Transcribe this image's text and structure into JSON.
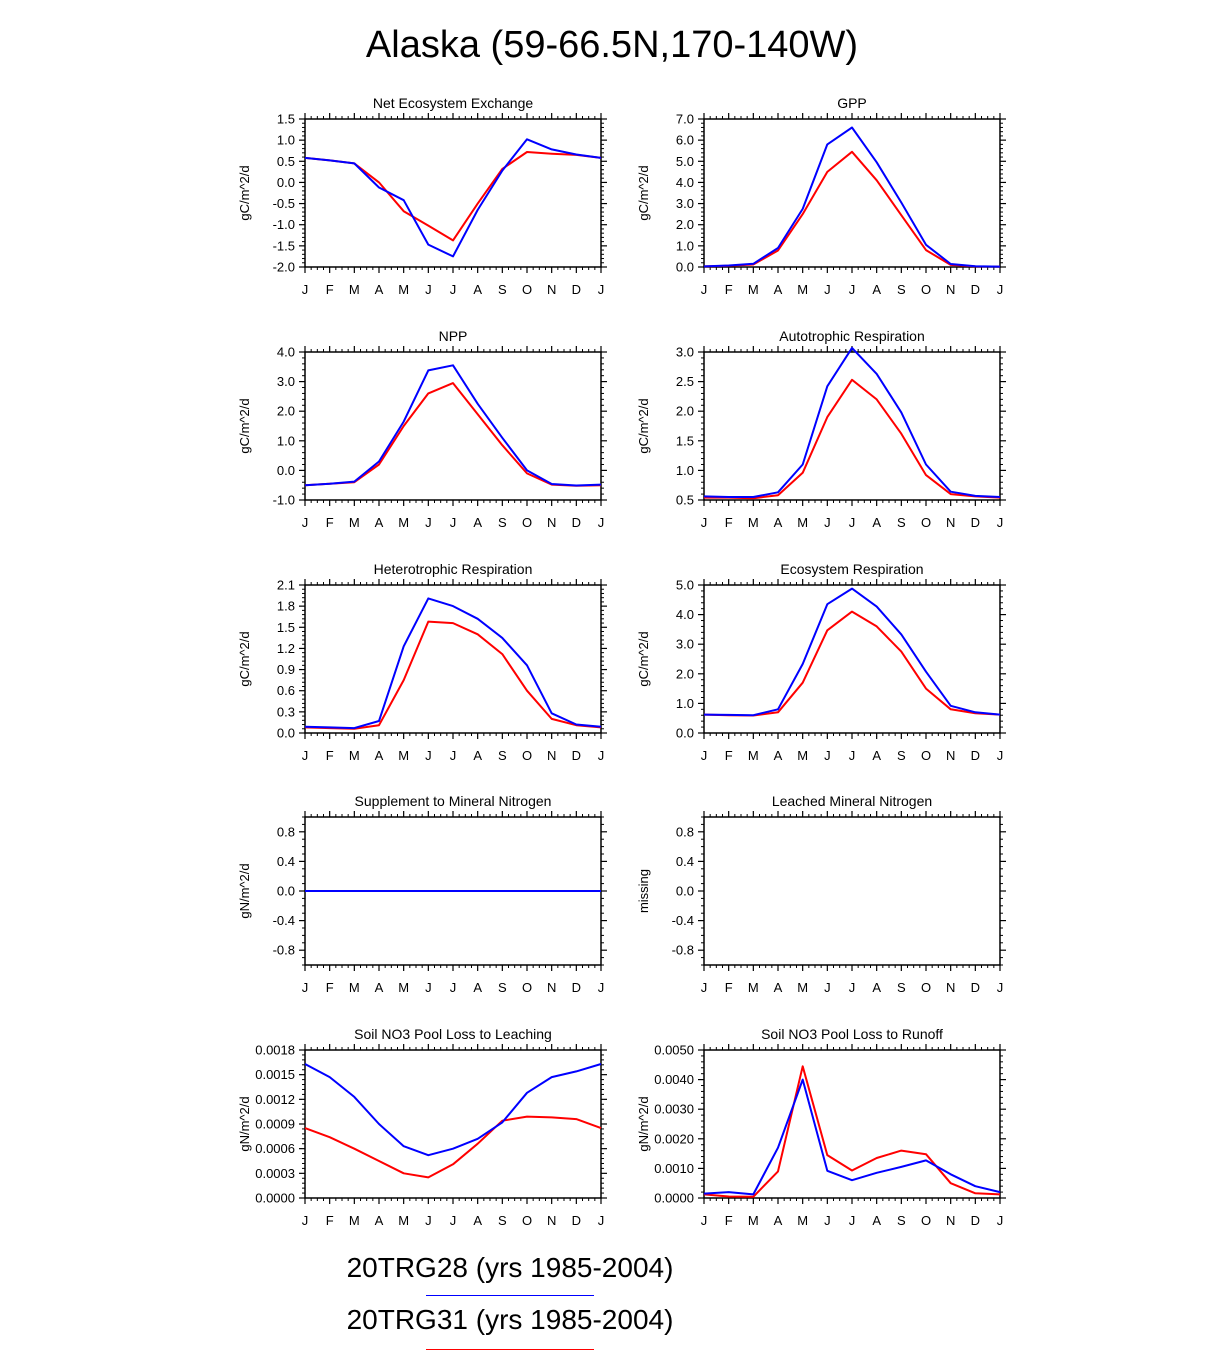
{
  "title": "Alaska (59-66.5N,170-140W)",
  "legend": [
    {
      "label": "20TRG28 (yrs 1985-2004)",
      "color": "#0000ff"
    },
    {
      "label": "20TRG31 (yrs 1985-2004)",
      "color": "#ff0000"
    }
  ],
  "chart_data": [
    {
      "type": "line",
      "title": "Net Ecosystem Exchange",
      "ylabel": "gC/m^2/d",
      "categories": [
        "J",
        "F",
        "M",
        "A",
        "M",
        "J",
        "J",
        "A",
        "S",
        "O",
        "N",
        "D",
        "J"
      ],
      "ylim": [
        -2.0,
        1.5
      ],
      "yticks": [
        "-2.0",
        "-1.5",
        "-1.0",
        "-0.5",
        "0.0",
        "0.5",
        "1.0",
        "1.5"
      ],
      "series": [
        {
          "name": "20TRG31 (yrs 1985-2004)",
          "color": "#ff0000",
          "values": [
            0.58,
            0.52,
            0.45,
            0.0,
            -0.68,
            -1.02,
            -1.37,
            -0.5,
            0.32,
            0.72,
            0.68,
            0.65,
            0.58
          ]
        },
        {
          "name": "20TRG28 (yrs 1985-2004)",
          "color": "#0000ff",
          "values": [
            0.58,
            0.52,
            0.45,
            -0.12,
            -0.42,
            -1.47,
            -1.75,
            -0.65,
            0.28,
            1.02,
            0.78,
            0.66,
            0.58
          ]
        }
      ]
    },
    {
      "type": "line",
      "title": "GPP",
      "ylabel": "gC/m^2/d",
      "categories": [
        "J",
        "F",
        "M",
        "A",
        "M",
        "J",
        "J",
        "A",
        "S",
        "O",
        "N",
        "D",
        "J"
      ],
      "ylim": [
        0.0,
        7.0
      ],
      "yticks": [
        "0.0",
        "1.0",
        "2.0",
        "3.0",
        "4.0",
        "5.0",
        "6.0",
        "7.0"
      ],
      "series": [
        {
          "name": "20TRG31 (yrs 1985-2004)",
          "color": "#ff0000",
          "values": [
            0.03,
            0.06,
            0.12,
            0.78,
            2.5,
            4.5,
            5.45,
            4.1,
            2.45,
            0.8,
            0.1,
            0.03,
            0.02
          ]
        },
        {
          "name": "20TRG28 (yrs 1985-2004)",
          "color": "#0000ff",
          "values": [
            0.03,
            0.07,
            0.15,
            0.9,
            2.75,
            5.8,
            6.6,
            4.95,
            3.05,
            1.05,
            0.14,
            0.04,
            0.02
          ]
        }
      ]
    },
    {
      "type": "line",
      "title": "NPP",
      "ylabel": "gC/m^2/d",
      "categories": [
        "J",
        "F",
        "M",
        "A",
        "M",
        "J",
        "J",
        "A",
        "S",
        "O",
        "N",
        "D",
        "J"
      ],
      "ylim": [
        -1.0,
        4.0
      ],
      "yticks": [
        "-1.0",
        "0.0",
        "1.0",
        "2.0",
        "3.0",
        "4.0"
      ],
      "series": [
        {
          "name": "20TRG31 (yrs 1985-2004)",
          "color": "#ff0000",
          "values": [
            -0.5,
            -0.45,
            -0.4,
            0.2,
            1.5,
            2.6,
            2.95,
            1.9,
            0.85,
            -0.1,
            -0.48,
            -0.52,
            -0.5
          ]
        },
        {
          "name": "20TRG28 (yrs 1985-2004)",
          "color": "#0000ff",
          "values": [
            -0.5,
            -0.45,
            -0.38,
            0.3,
            1.65,
            3.38,
            3.55,
            2.25,
            1.1,
            0.0,
            -0.46,
            -0.51,
            -0.48
          ]
        }
      ]
    },
    {
      "type": "line",
      "title": "Autotrophic Respiration",
      "ylabel": "gC/m^2/d",
      "categories": [
        "J",
        "F",
        "M",
        "A",
        "M",
        "J",
        "J",
        "A",
        "S",
        "O",
        "N",
        "D",
        "J"
      ],
      "ylim": [
        0.5,
        3.0
      ],
      "yticks": [
        "0.5",
        "1.0",
        "1.5",
        "2.0",
        "2.5",
        "3.0"
      ],
      "series": [
        {
          "name": "20TRG31 (yrs 1985-2004)",
          "color": "#ff0000",
          "values": [
            0.54,
            0.54,
            0.53,
            0.58,
            0.96,
            1.9,
            2.53,
            2.2,
            1.62,
            0.92,
            0.6,
            0.56,
            0.54
          ]
        },
        {
          "name": "20TRG28 (yrs 1985-2004)",
          "color": "#0000ff",
          "values": [
            0.56,
            0.55,
            0.55,
            0.63,
            1.1,
            2.42,
            3.07,
            2.63,
            1.98,
            1.1,
            0.64,
            0.57,
            0.55
          ]
        }
      ]
    },
    {
      "type": "line",
      "title": "Heterotrophic Respiration",
      "ylabel": "gC/m^2/d",
      "categories": [
        "J",
        "F",
        "M",
        "A",
        "M",
        "J",
        "J",
        "A",
        "S",
        "O",
        "N",
        "D",
        "J"
      ],
      "ylim": [
        0.0,
        2.1
      ],
      "yticks": [
        "0.0",
        "0.3",
        "0.6",
        "0.9",
        "1.2",
        "1.5",
        "1.8",
        "2.1"
      ],
      "series": [
        {
          "name": "20TRG31 (yrs 1985-2004)",
          "color": "#ff0000",
          "values": [
            0.08,
            0.07,
            0.06,
            0.11,
            0.75,
            1.58,
            1.56,
            1.4,
            1.12,
            0.6,
            0.2,
            0.11,
            0.08
          ]
        },
        {
          "name": "20TRG28 (yrs 1985-2004)",
          "color": "#0000ff",
          "values": [
            0.09,
            0.08,
            0.07,
            0.17,
            1.23,
            1.91,
            1.8,
            1.62,
            1.35,
            0.96,
            0.28,
            0.12,
            0.09
          ]
        }
      ]
    },
    {
      "type": "line",
      "title": "Ecosystem Respiration",
      "ylabel": "gC/m^2/d",
      "categories": [
        "J",
        "F",
        "M",
        "A",
        "M",
        "J",
        "J",
        "A",
        "S",
        "O",
        "N",
        "D",
        "J"
      ],
      "ylim": [
        0.0,
        5.0
      ],
      "yticks": [
        "0.0",
        "1.0",
        "2.0",
        "3.0",
        "4.0",
        "5.0"
      ],
      "series": [
        {
          "name": "20TRG31 (yrs 1985-2004)",
          "color": "#ff0000",
          "values": [
            0.62,
            0.6,
            0.59,
            0.7,
            1.7,
            3.47,
            4.1,
            3.6,
            2.75,
            1.5,
            0.8,
            0.67,
            0.62
          ]
        },
        {
          "name": "20TRG28 (yrs 1985-2004)",
          "color": "#0000ff",
          "values": [
            0.62,
            0.61,
            0.6,
            0.8,
            2.33,
            4.35,
            4.88,
            4.27,
            3.33,
            2.07,
            0.92,
            0.7,
            0.62
          ]
        }
      ]
    },
    {
      "type": "line",
      "title": "Supplement to Mineral Nitrogen",
      "ylabel": "gN/m^2/d",
      "categories": [
        "J",
        "F",
        "M",
        "A",
        "M",
        "J",
        "J",
        "A",
        "S",
        "O",
        "N",
        "D",
        "J"
      ],
      "ylim": [
        -1.0,
        1.0
      ],
      "yticks": [
        "-0.8",
        "-0.4",
        "0.0",
        "0.4",
        "0.8"
      ],
      "ytick_values": [
        -0.8,
        -0.4,
        0.0,
        0.4,
        0.8
      ],
      "series": [
        {
          "name": "20TRG31 (yrs 1985-2004)",
          "color": "#ff0000",
          "values": [
            0,
            0,
            0,
            0,
            0,
            0,
            0,
            0,
            0,
            0,
            0,
            0,
            0
          ]
        },
        {
          "name": "20TRG28 (yrs 1985-2004)",
          "color": "#0000ff",
          "values": [
            0,
            0,
            0,
            0,
            0,
            0,
            0,
            0,
            0,
            0,
            0,
            0,
            0
          ]
        }
      ]
    },
    {
      "type": "line",
      "title": "Leached Mineral Nitrogen",
      "ylabel": "missing",
      "categories": [
        "J",
        "F",
        "M",
        "A",
        "M",
        "J",
        "J",
        "A",
        "S",
        "O",
        "N",
        "D",
        "J"
      ],
      "ylim": [
        -1.0,
        1.0
      ],
      "yticks": [
        "-0.8",
        "-0.4",
        "0.0",
        "0.4",
        "0.8"
      ],
      "ytick_values": [
        -0.8,
        -0.4,
        0.0,
        0.4,
        0.8
      ],
      "series": []
    },
    {
      "type": "line",
      "title": "Soil NO3 Pool Loss to Leaching",
      "ylabel": "gN/m^2/d",
      "categories": [
        "J",
        "F",
        "M",
        "A",
        "M",
        "J",
        "J",
        "A",
        "S",
        "O",
        "N",
        "D",
        "J"
      ],
      "ylim": [
        0.0,
        0.0018
      ],
      "yticks": [
        "0.0000",
        "0.0003",
        "0.0006",
        "0.0009",
        "0.0012",
        "0.0015",
        "0.0018"
      ],
      "series": [
        {
          "name": "20TRG31 (yrs 1985-2004)",
          "color": "#ff0000",
          "values": [
            0.00085,
            0.00074,
            0.0006,
            0.00045,
            0.0003,
            0.00025,
            0.00041,
            0.00066,
            0.00094,
            0.00099,
            0.00098,
            0.00096,
            0.00085
          ]
        },
        {
          "name": "20TRG28 (yrs 1985-2004)",
          "color": "#0000ff",
          "values": [
            0.00163,
            0.00147,
            0.00123,
            0.0009,
            0.00063,
            0.00052,
            0.0006,
            0.00072,
            0.00092,
            0.00128,
            0.00147,
            0.00154,
            0.00163
          ]
        }
      ]
    },
    {
      "type": "line",
      "title": "Soil NO3 Pool Loss to Runoff",
      "ylabel": "gN/m^2/d",
      "categories": [
        "J",
        "F",
        "M",
        "A",
        "M",
        "J",
        "J",
        "A",
        "S",
        "O",
        "N",
        "D",
        "J"
      ],
      "ylim": [
        0.0,
        0.005
      ],
      "yticks": [
        "0.0000",
        "0.0010",
        "0.0020",
        "0.0030",
        "0.0040",
        "0.0050"
      ],
      "series": [
        {
          "name": "20TRG31 (yrs 1985-2004)",
          "color": "#ff0000",
          "values": [
            0.00012,
            5e-05,
            4e-05,
            0.0009,
            0.00445,
            0.00145,
            0.00093,
            0.00135,
            0.0016,
            0.00148,
            0.0005,
            0.00016,
            0.00012
          ]
        },
        {
          "name": "20TRG28 (yrs 1985-2004)",
          "color": "#0000ff",
          "values": [
            0.00015,
            0.0002,
            0.00012,
            0.0017,
            0.004,
            0.00092,
            0.0006,
            0.00085,
            0.00105,
            0.00127,
            0.0008,
            0.0004,
            0.0002
          ]
        }
      ]
    }
  ]
}
